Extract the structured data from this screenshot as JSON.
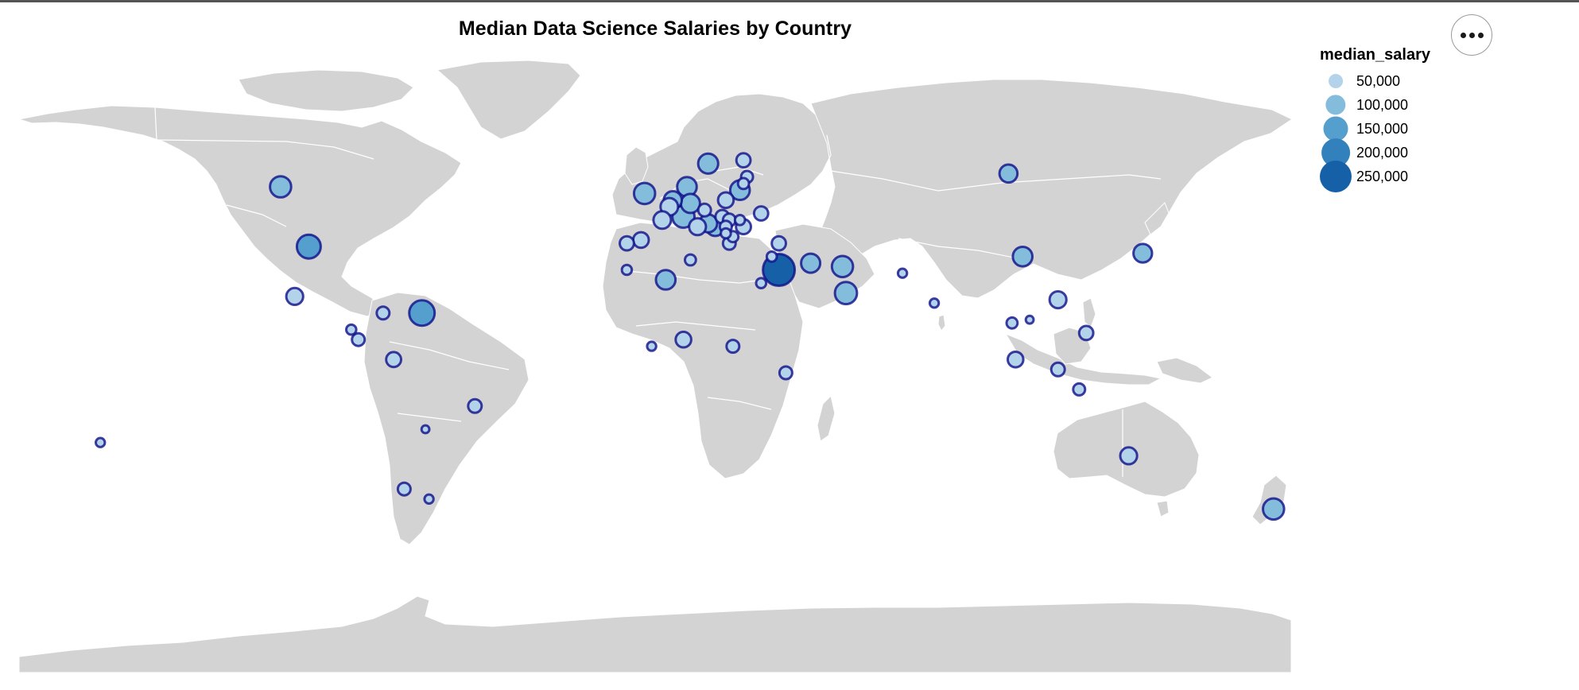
{
  "actions_icon": "ellipsis-icon",
  "colors": {
    "land": "#d3d3d3",
    "border": "#ffffff",
    "marker_stroke": "#0e0e8a"
  },
  "chart_data": {
    "type": "bubble-map",
    "title": "Median Data Science Salaries by Country",
    "projection": "equirectangular",
    "legend": {
      "title": "median_salary",
      "placement": "top-right",
      "entries": [
        {
          "label": "50,000",
          "value": 50000,
          "color": "#b3d3ea"
        },
        {
          "label": "100,000",
          "value": 100000,
          "color": "#84bcdc"
        },
        {
          "label": "150,000",
          "value": 150000,
          "color": "#559fcf"
        },
        {
          "label": "200,000",
          "value": 200000,
          "color": "#3281bd"
        },
        {
          "label": "250,000",
          "value": 250000,
          "color": "#1660a8"
        }
      ]
    },
    "points": [
      {
        "lon": -106,
        "lat": 56,
        "median_salary": 110000
      },
      {
        "lon": -98,
        "lat": 38,
        "median_salary": 140000
      },
      {
        "lon": -102,
        "lat": 23,
        "median_salary": 70000
      },
      {
        "lon": -77,
        "lat": 18,
        "median_salary": 40000
      },
      {
        "lon": -66,
        "lat": 18,
        "median_salary": 160000
      },
      {
        "lon": -86,
        "lat": 13,
        "median_salary": 25000
      },
      {
        "lon": -84,
        "lat": 10,
        "median_salary": 40000
      },
      {
        "lon": -74,
        "lat": 4,
        "median_salary": 55000
      },
      {
        "lon": -51,
        "lat": -10,
        "median_salary": 45000
      },
      {
        "lon": -65,
        "lat": -17,
        "median_salary": 15000
      },
      {
        "lon": -71,
        "lat": -35,
        "median_salary": 40000
      },
      {
        "lon": -64,
        "lat": -38,
        "median_salary": 20000
      },
      {
        "lon": -157,
        "lat": -21,
        "median_salary": 20000
      },
      {
        "lon": -3,
        "lat": 54,
        "median_salary": 110000
      },
      {
        "lon": 9,
        "lat": 56,
        "median_salary": 95000
      },
      {
        "lon": 15,
        "lat": 63,
        "median_salary": 100000
      },
      {
        "lon": 25,
        "lat": 64,
        "median_salary": 50000
      },
      {
        "lon": 26,
        "lat": 59,
        "median_salary": 35000
      },
      {
        "lon": 25,
        "lat": 57,
        "median_salary": 30000
      },
      {
        "lon": 24,
        "lat": 55,
        "median_salary": 95000
      },
      {
        "lon": 20,
        "lat": 52,
        "median_salary": 60000
      },
      {
        "lon": 5,
        "lat": 52,
        "median_salary": 80000
      },
      {
        "lon": 10,
        "lat": 51,
        "median_salary": 90000
      },
      {
        "lon": 4,
        "lat": 50,
        "median_salary": 75000
      },
      {
        "lon": 14,
        "lat": 49,
        "median_salary": 40000
      },
      {
        "lon": 2,
        "lat": 46,
        "median_salary": 75000
      },
      {
        "lon": 8,
        "lat": 47,
        "median_salary": 120000
      },
      {
        "lon": 12,
        "lat": 44,
        "median_salary": 70000
      },
      {
        "lon": 15,
        "lat": 45,
        "median_salary": 80000
      },
      {
        "lon": 17,
        "lat": 44,
        "median_salary": 85000
      },
      {
        "lon": 19,
        "lat": 47,
        "median_salary": 45000
      },
      {
        "lon": 21,
        "lat": 46,
        "median_salary": 40000
      },
      {
        "lon": 20,
        "lat": 44,
        "median_salary": 35000
      },
      {
        "lon": 22,
        "lat": 41,
        "median_salary": 30000
      },
      {
        "lon": 20,
        "lat": 42,
        "median_salary": 25000
      },
      {
        "lon": 21,
        "lat": 39,
        "median_salary": 40000
      },
      {
        "lon": 25,
        "lat": 44,
        "median_salary": 55000
      },
      {
        "lon": 30,
        "lat": 48,
        "median_salary": 50000
      },
      {
        "lon": 24,
        "lat": 46,
        "median_salary": 25000
      },
      {
        "lon": -8,
        "lat": 39,
        "median_salary": 50000
      },
      {
        "lon": -4,
        "lat": 40,
        "median_salary": 60000
      },
      {
        "lon": -8,
        "lat": 31,
        "median_salary": 25000
      },
      {
        "lon": 3,
        "lat": 28,
        "median_salary": 95000
      },
      {
        "lon": 10,
        "lat": 34,
        "median_salary": 30000
      },
      {
        "lon": 33,
        "lat": 35,
        "median_salary": 25000
      },
      {
        "lon": 35,
        "lat": 39,
        "median_salary": 50000
      },
      {
        "lon": 35,
        "lat": 31,
        "median_salary": 250000
      },
      {
        "lon": 30,
        "lat": 27,
        "median_salary": 25000
      },
      {
        "lon": 44,
        "lat": 33,
        "median_salary": 90000
      },
      {
        "lon": 53,
        "lat": 32,
        "median_salary": 110000
      },
      {
        "lon": 54,
        "lat": 24,
        "median_salary": 120000
      },
      {
        "lon": 70,
        "lat": 30,
        "median_salary": 20000
      },
      {
        "lon": 79,
        "lat": 21,
        "median_salary": 20000
      },
      {
        "lon": 100,
        "lat": 60,
        "median_salary": 80000
      },
      {
        "lon": 104,
        "lat": 35,
        "median_salary": 95000
      },
      {
        "lon": 138,
        "lat": 36,
        "median_salary": 85000
      },
      {
        "lon": 114,
        "lat": 22,
        "median_salary": 70000
      },
      {
        "lon": 101,
        "lat": 15,
        "median_salary": 30000
      },
      {
        "lon": 106,
        "lat": 16,
        "median_salary": 15000
      },
      {
        "lon": 122,
        "lat": 12,
        "median_salary": 50000
      },
      {
        "lon": 102,
        "lat": 4,
        "median_salary": 60000
      },
      {
        "lon": 114,
        "lat": 1,
        "median_salary": 45000
      },
      {
        "lon": 120,
        "lat": -5,
        "median_salary": 35000
      },
      {
        "lon": 134,
        "lat": -25,
        "median_salary": 70000
      },
      {
        "lon": 175,
        "lat": -41,
        "median_salary": 110000
      },
      {
        "lon": 8,
        "lat": 10,
        "median_salary": 60000
      },
      {
        "lon": -1,
        "lat": 8,
        "median_salary": 20000
      },
      {
        "lon": 22,
        "lat": 8,
        "median_salary": 40000
      },
      {
        "lon": 37,
        "lat": 0,
        "median_salary": 40000
      }
    ]
  }
}
